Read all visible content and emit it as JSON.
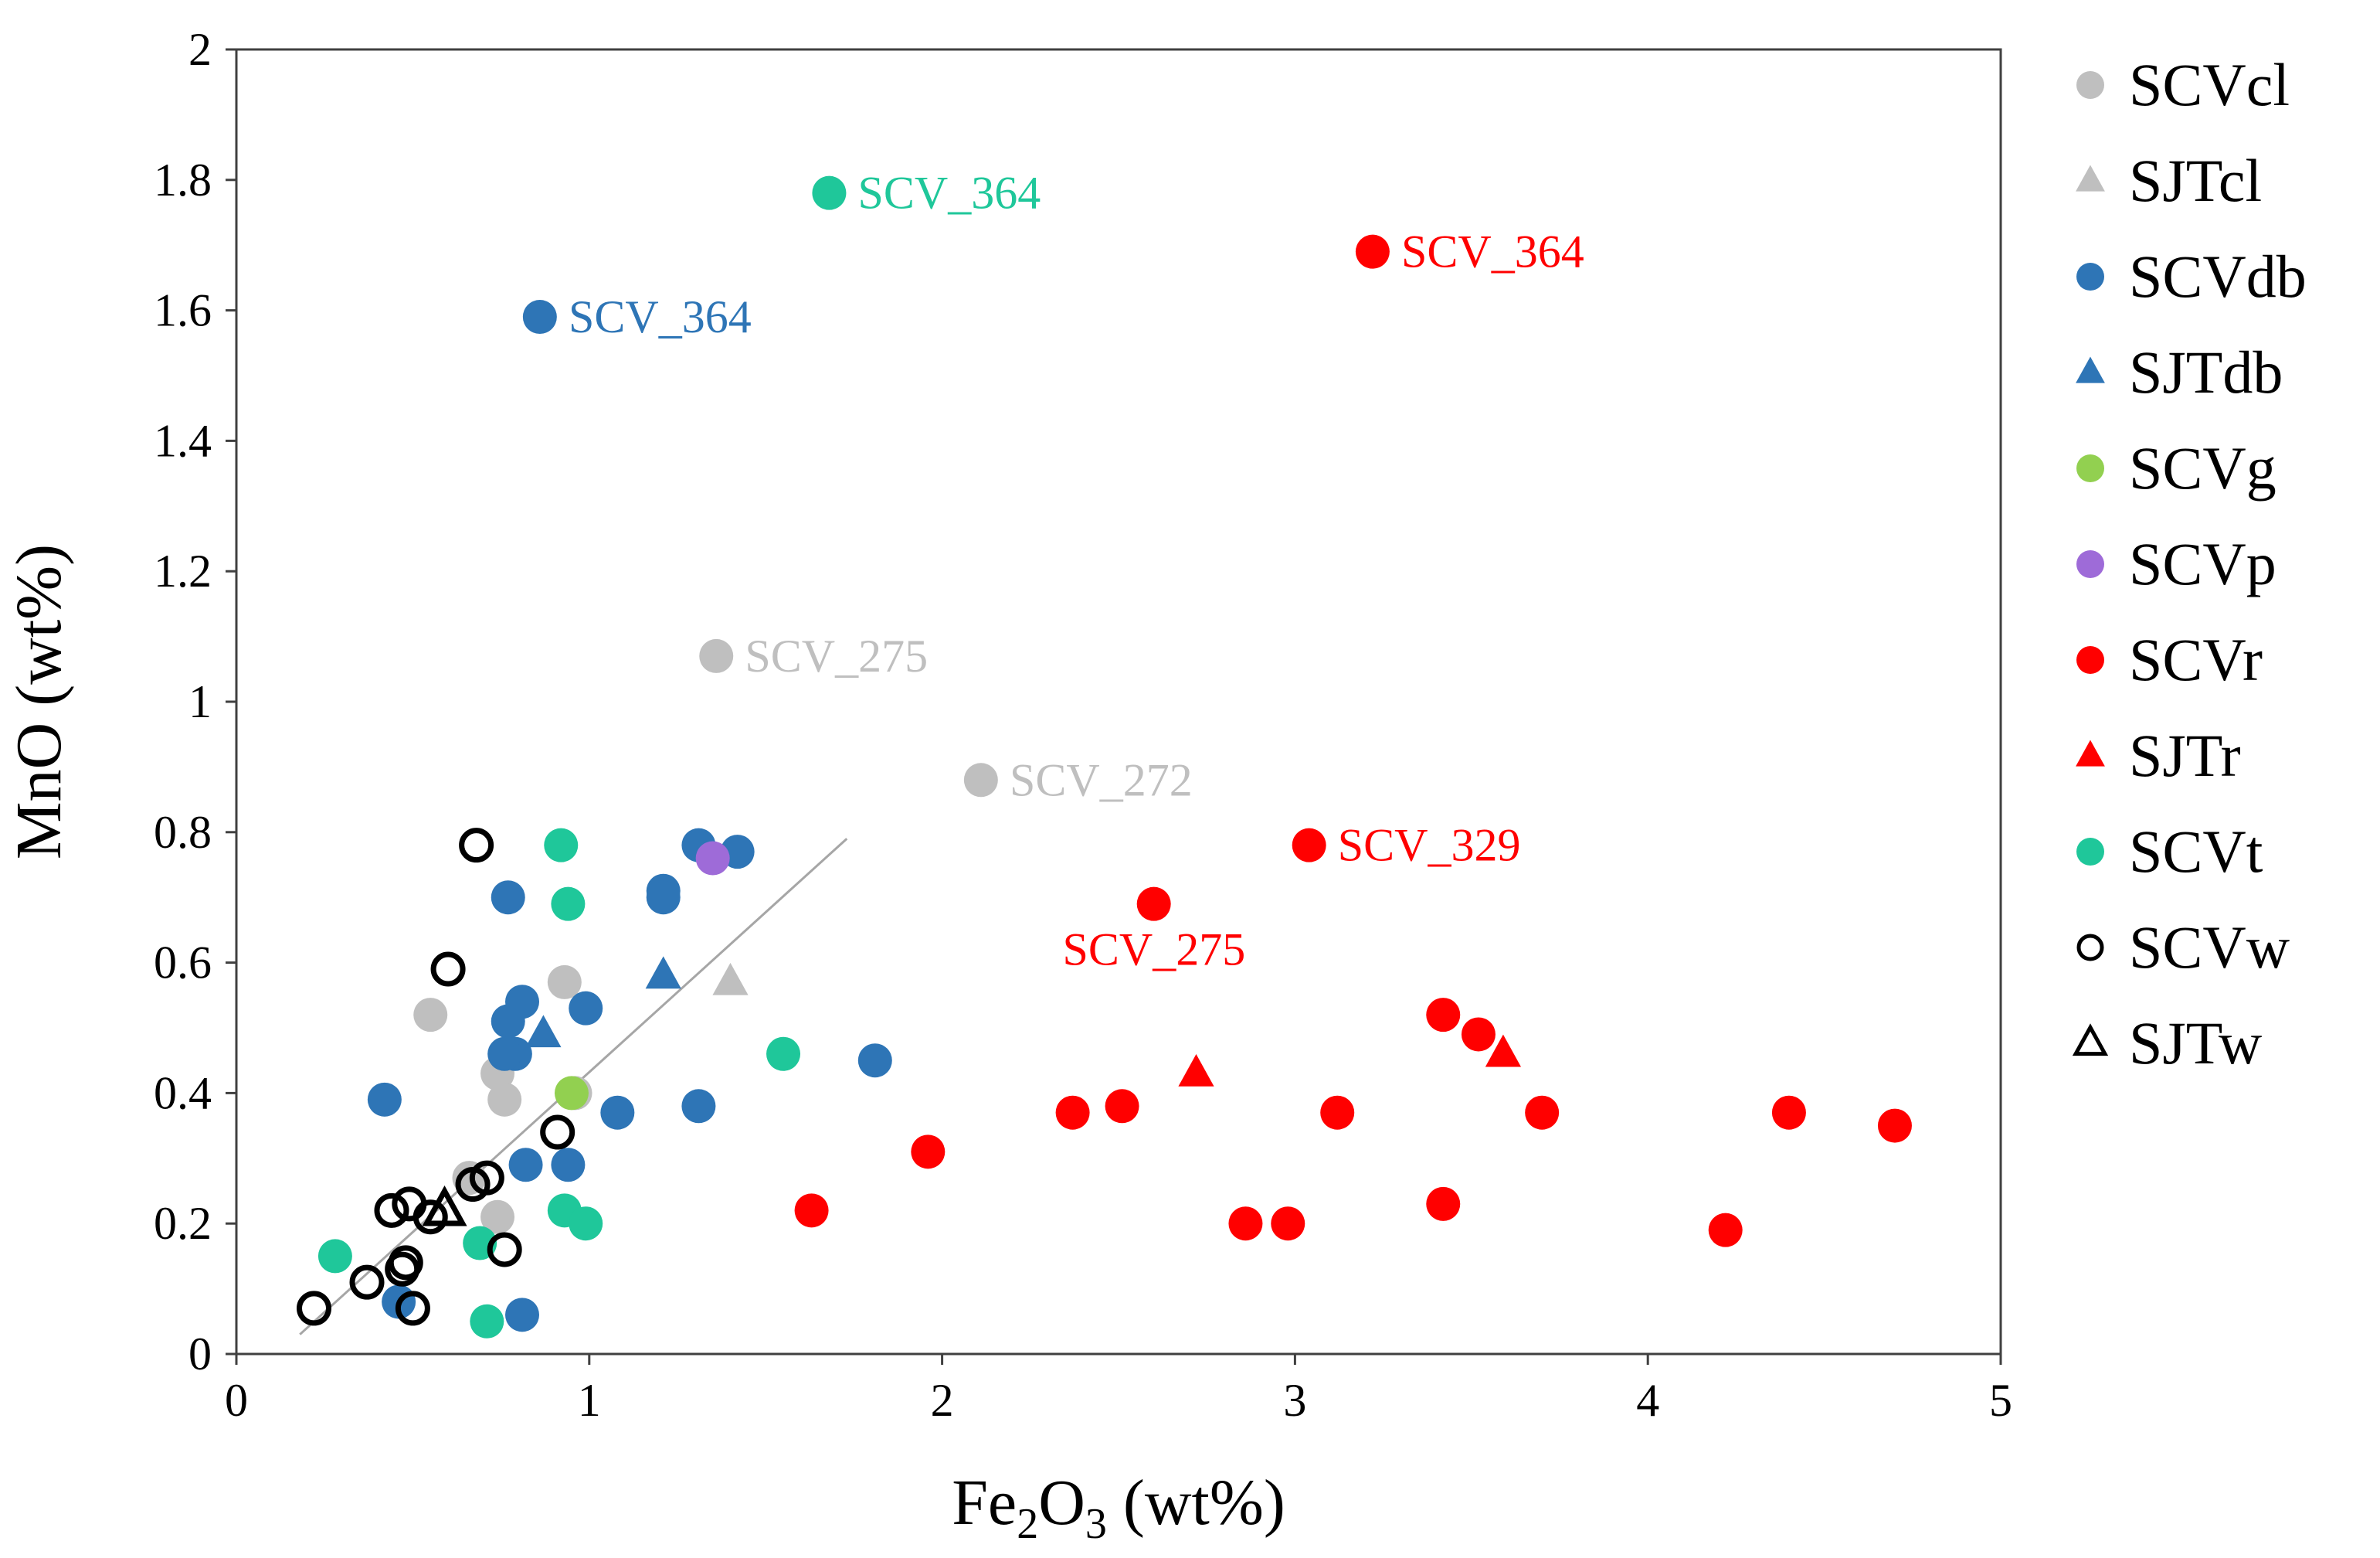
{
  "chart_data": {
    "type": "scatter",
    "title": "",
    "xlabel": "Fe2O3 (wt%)",
    "xlabel_parts": {
      "pre": "Fe",
      "sub": "2",
      "post": "O",
      "sub2": "3",
      "unit": " (wt%)"
    },
    "ylabel": "MnO (wt%)",
    "xlim": [
      0,
      5
    ],
    "ylim": [
      0,
      2
    ],
    "xticks": [
      0,
      1,
      2,
      3,
      4,
      5
    ],
    "xtick_labels": [
      "0",
      "1",
      "2",
      "3",
      "4",
      "5"
    ],
    "yticks": [
      0,
      0.2,
      0.4,
      0.6,
      0.8,
      1,
      1.2,
      1.4,
      1.6,
      1.8,
      2
    ],
    "ytick_labels": [
      "0",
      "0.2",
      "0.4",
      "0.6",
      "0.8",
      "1",
      "1.2",
      "1.4",
      "1.6",
      "1.8",
      "2"
    ],
    "grid": false,
    "legend_position": "right",
    "trendline": {
      "x": [
        0.18,
        1.73
      ],
      "y": [
        0.03,
        0.79
      ],
      "color": "#a6a6a6"
    },
    "series": [
      {
        "name": "SCVcl",
        "marker": "circle",
        "fill": "#bfbfbf",
        "stroke": "none",
        "x": [
          0.55,
          0.74,
          0.76,
          0.93,
          0.96,
          0.74,
          0.66,
          1.36,
          2.11
        ],
        "y": [
          0.52,
          0.43,
          0.39,
          0.57,
          0.4,
          0.21,
          0.27,
          1.07,
          0.88
        ]
      },
      {
        "name": "SJTcl",
        "marker": "triangle",
        "fill": "#bfbfbf",
        "stroke": "none",
        "x": [
          1.4
        ],
        "y": [
          0.57
        ]
      },
      {
        "name": "SCVdb",
        "marker": "circle",
        "fill": "#2e75b6",
        "stroke": "none",
        "x": [
          0.86,
          0.42,
          0.77,
          0.77,
          0.79,
          0.81,
          0.76,
          0.99,
          0.82,
          0.94,
          1.08,
          1.21,
          1.21,
          1.31,
          1.31,
          1.42,
          1.81,
          0.81,
          0.46
        ],
        "y": [
          1.59,
          0.39,
          0.7,
          0.51,
          0.46,
          0.54,
          0.46,
          0.53,
          0.29,
          0.29,
          0.37,
          0.71,
          0.7,
          0.78,
          0.38,
          0.77,
          0.45,
          0.06,
          0.08
        ]
      },
      {
        "name": "SJTdb",
        "marker": "triangle",
        "fill": "#2e75b6",
        "stroke": "none",
        "x": [
          0.87,
          1.21
        ],
        "y": [
          0.49,
          0.58
        ]
      },
      {
        "name": "SCVg",
        "marker": "circle",
        "fill": "#92d050",
        "stroke": "none",
        "x": [
          0.95
        ],
        "y": [
          0.4
        ]
      },
      {
        "name": "SCVp",
        "marker": "circle",
        "fill": "#9e6bd8",
        "stroke": "none",
        "x": [
          1.35
        ],
        "y": [
          0.76
        ]
      },
      {
        "name": "SCVr",
        "marker": "circle",
        "fill": "#ff0000",
        "stroke": "none",
        "x": [
          3.22,
          3.04,
          2.6,
          1.63,
          1.96,
          2.37,
          2.51,
          2.86,
          2.98,
          3.12,
          3.42,
          3.42,
          3.52,
          3.7,
          4.22,
          4.4,
          4.7
        ],
        "y": [
          1.69,
          0.78,
          0.69,
          0.22,
          0.31,
          0.37,
          0.38,
          0.2,
          0.2,
          0.37,
          0.52,
          0.23,
          0.49,
          0.37,
          0.19,
          0.37,
          0.35
        ]
      },
      {
        "name": "SJTr",
        "marker": "triangle",
        "fill": "#ff0000",
        "stroke": "none",
        "x": [
          2.72,
          3.59
        ],
        "y": [
          0.43,
          0.46
        ]
      },
      {
        "name": "SCVt",
        "marker": "circle",
        "fill": "#1fc79a",
        "stroke": "none",
        "x": [
          1.68,
          0.92,
          0.94,
          1.55,
          0.93,
          0.99,
          0.69,
          0.28,
          0.71
        ],
        "y": [
          1.78,
          0.78,
          0.69,
          0.46,
          0.22,
          0.2,
          0.17,
          0.15,
          0.05
        ]
      },
      {
        "name": "SCVw",
        "marker": "circle",
        "fill": "none",
        "stroke": "#000000",
        "x": [
          0.68,
          0.6,
          0.91,
          0.71,
          0.67,
          0.44,
          0.49,
          0.55,
          0.48,
          0.47,
          0.76,
          0.37,
          0.22,
          0.5
        ],
        "y": [
          0.78,
          0.59,
          0.34,
          0.27,
          0.26,
          0.22,
          0.23,
          0.21,
          0.14,
          0.13,
          0.16,
          0.11,
          0.07,
          0.07
        ]
      },
      {
        "name": "SJTw",
        "marker": "triangle",
        "fill": "none",
        "stroke": "#000000",
        "x": [
          0.59
        ],
        "y": [
          0.22
        ]
      }
    ],
    "annotations": [
      {
        "text": "SCV_364",
        "x": 1.7,
        "y": 1.78,
        "anchor": "left",
        "color": "#1fc79a"
      },
      {
        "text": "SCV_364",
        "x": 3.24,
        "y": 1.69,
        "anchor": "left",
        "color": "#ff0000"
      },
      {
        "text": "SCV_364",
        "x": 0.88,
        "y": 1.59,
        "anchor": "left",
        "color": "#2e75b6"
      },
      {
        "text": "SCV_275",
        "x": 1.38,
        "y": 1.07,
        "anchor": "left",
        "color": "#bfbfbf"
      },
      {
        "text": "SCV_272",
        "x": 2.13,
        "y": 0.88,
        "anchor": "left",
        "color": "#bfbfbf"
      },
      {
        "text": "SCV_329",
        "x": 3.06,
        "y": 0.78,
        "anchor": "left",
        "color": "#ff0000"
      },
      {
        "text": "SCV_275",
        "x": 2.28,
        "y": 0.62,
        "anchor": "left",
        "color": "#ff0000"
      }
    ]
  }
}
